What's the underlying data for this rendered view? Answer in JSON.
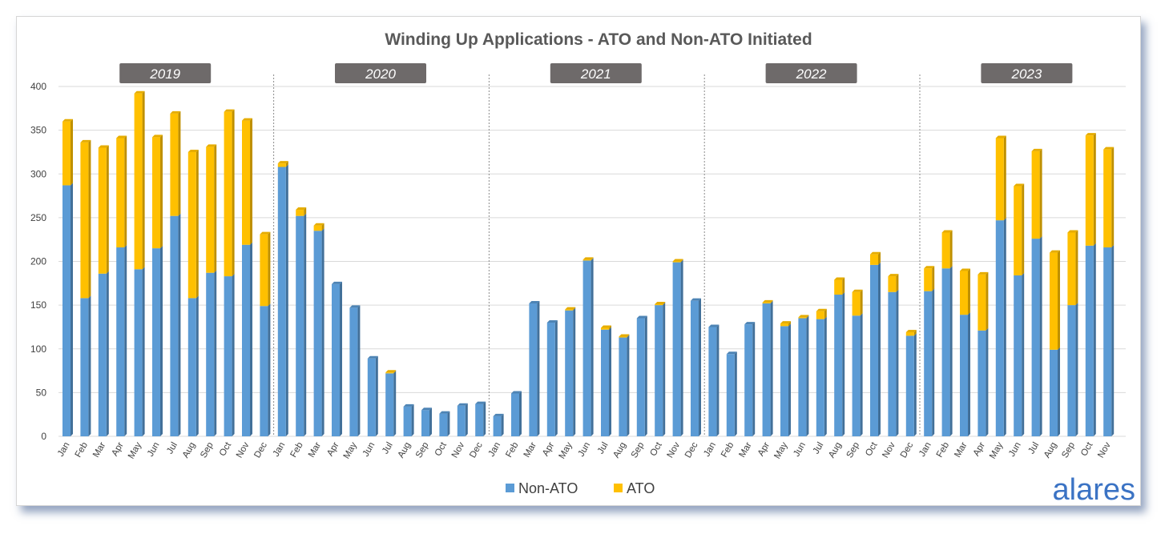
{
  "chart_data": {
    "type": "bar",
    "stacked": true,
    "title": "Winding Up Applications - ATO and Non-ATO Initiated",
    "xlabel": "",
    "ylabel": "",
    "ylim": [
      0,
      400
    ],
    "yticks": [
      0,
      50,
      100,
      150,
      200,
      250,
      300,
      350,
      400
    ],
    "grid": true,
    "legend_position": "bottom",
    "groups": [
      {
        "year": "2019",
        "months": [
          "Jan",
          "Feb",
          "Mar",
          "Apr",
          "May",
          "Jun",
          "Jul",
          "Aug",
          "Sep",
          "Oct",
          "Nov",
          "Dec"
        ]
      },
      {
        "year": "2020",
        "months": [
          "Jan",
          "Feb",
          "Mar",
          "Apr",
          "May",
          "Jun",
          "Jul",
          "Aug",
          "Sep",
          "Oct",
          "Nov",
          "Dec"
        ]
      },
      {
        "year": "2021",
        "months": [
          "Jan",
          "Feb",
          "Mar",
          "Apr",
          "May",
          "Jun",
          "Jul",
          "Aug",
          "Sep",
          "Oct",
          "Nov",
          "Dec"
        ]
      },
      {
        "year": "2022",
        "months": [
          "Jan",
          "Feb",
          "Mar",
          "Apr",
          "May",
          "Jun",
          "Jul",
          "Aug",
          "Sep",
          "Oct",
          "Nov",
          "Dec"
        ]
      },
      {
        "year": "2023",
        "months": [
          "Jan",
          "Feb",
          "Mar",
          "Apr",
          "May",
          "Jun",
          "Jul",
          "Aug",
          "Sep",
          "Oct",
          "Nov"
        ]
      }
    ],
    "series": [
      {
        "name": "Non-ATO",
        "color": "#5b9bd5",
        "values": [
          287,
          158,
          186,
          216,
          191,
          215,
          252,
          158,
          187,
          183,
          219,
          149,
          308,
          252,
          235,
          174,
          147,
          89,
          72,
          34,
          30,
          26,
          35,
          37,
          23,
          49,
          152,
          130,
          144,
          201,
          122,
          113,
          135,
          150,
          199,
          155,
          125,
          94,
          128,
          152,
          126,
          135,
          134,
          162,
          138,
          196,
          165,
          115,
          166,
          192,
          139,
          121,
          247,
          184,
          226,
          99,
          150,
          218,
          216
        ]
      },
      {
        "name": "ATO",
        "color": "#ffc000",
        "values": [
          73,
          178,
          144,
          125,
          201,
          127,
          117,
          167,
          144,
          188,
          142,
          82,
          4,
          7,
          6,
          0,
          0,
          0,
          1,
          0,
          0,
          0,
          0,
          0,
          0,
          0,
          0,
          0,
          1,
          1,
          2,
          1,
          0,
          1,
          1,
          0,
          0,
          0,
          0,
          1,
          3,
          1,
          9,
          17,
          27,
          12,
          18,
          4,
          26,
          41,
          50,
          64,
          94,
          102,
          100,
          111,
          83,
          126,
          112
        ]
      }
    ]
  },
  "brand": "alares"
}
